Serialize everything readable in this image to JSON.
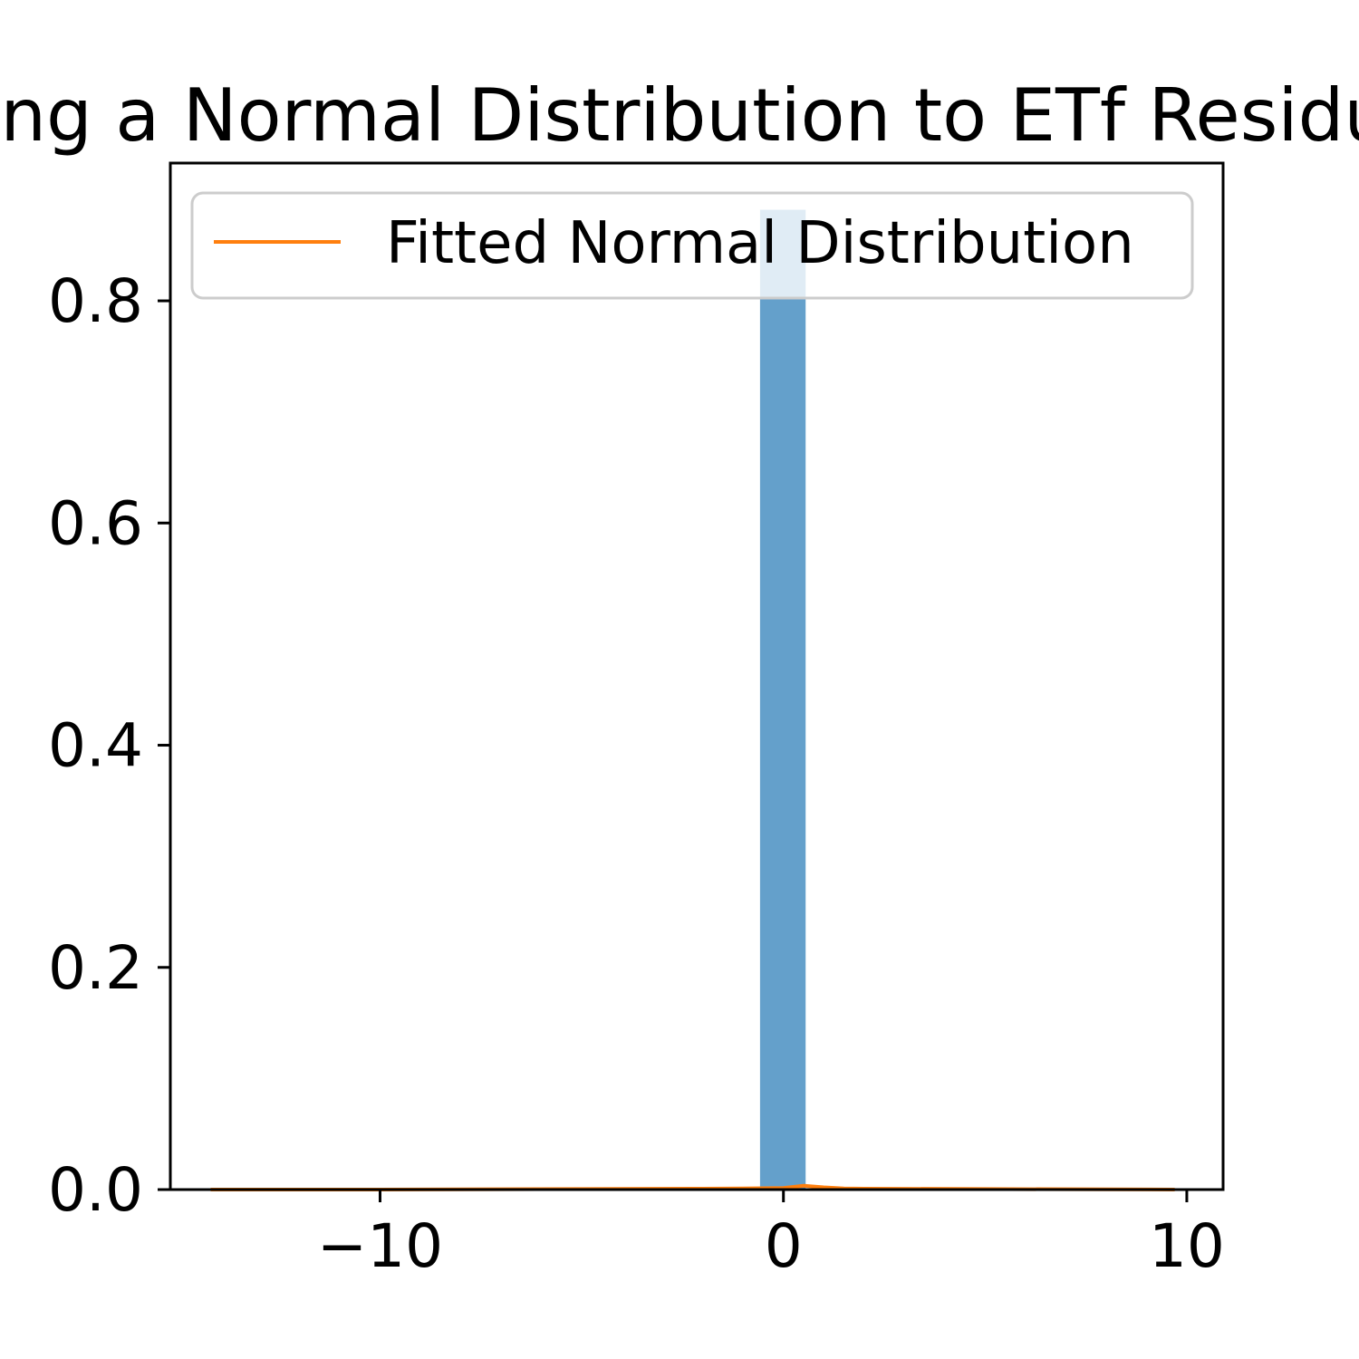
{
  "chart_data": {
    "type": "bar",
    "title": "Fitting a Normal Distribution to ETf Residuals",
    "xlabel": "",
    "ylabel": "",
    "xlim": [
      -15.2,
      10.9
    ],
    "ylim": [
      0.0,
      0.924
    ],
    "x_ticks": [
      {
        "value": -10,
        "label": "−10"
      },
      {
        "value": 0,
        "label": "0"
      },
      {
        "value": 10,
        "label": "10"
      }
    ],
    "y_ticks": [
      {
        "value": 0.0,
        "label": "0.0"
      },
      {
        "value": 0.2,
        "label": "0.2"
      },
      {
        "value": 0.4,
        "label": "0.4"
      },
      {
        "value": 0.6,
        "label": "0.6"
      },
      {
        "value": 0.8,
        "label": "0.8"
      }
    ],
    "grid": false,
    "legend_position": "top",
    "histogram": {
      "color": "#64a0cb",
      "bins": [
        {
          "x_start": -0.58,
          "x_end": 0.55,
          "density": 0.882
        }
      ]
    },
    "series": [
      {
        "name": "Fitted Normal Distribution",
        "type": "line",
        "color": "#ff7f0e",
        "x": [
          -14.2,
          -10,
          -5,
          -2,
          -1,
          0,
          0.5,
          1,
          1.5,
          2,
          5,
          9.7
        ],
        "y": [
          0.0,
          0.0,
          0.0005,
          0.0008,
          0.001,
          0.0015,
          0.0035,
          0.002,
          0.001,
          0.0008,
          0.0005,
          0.0
        ]
      }
    ]
  }
}
